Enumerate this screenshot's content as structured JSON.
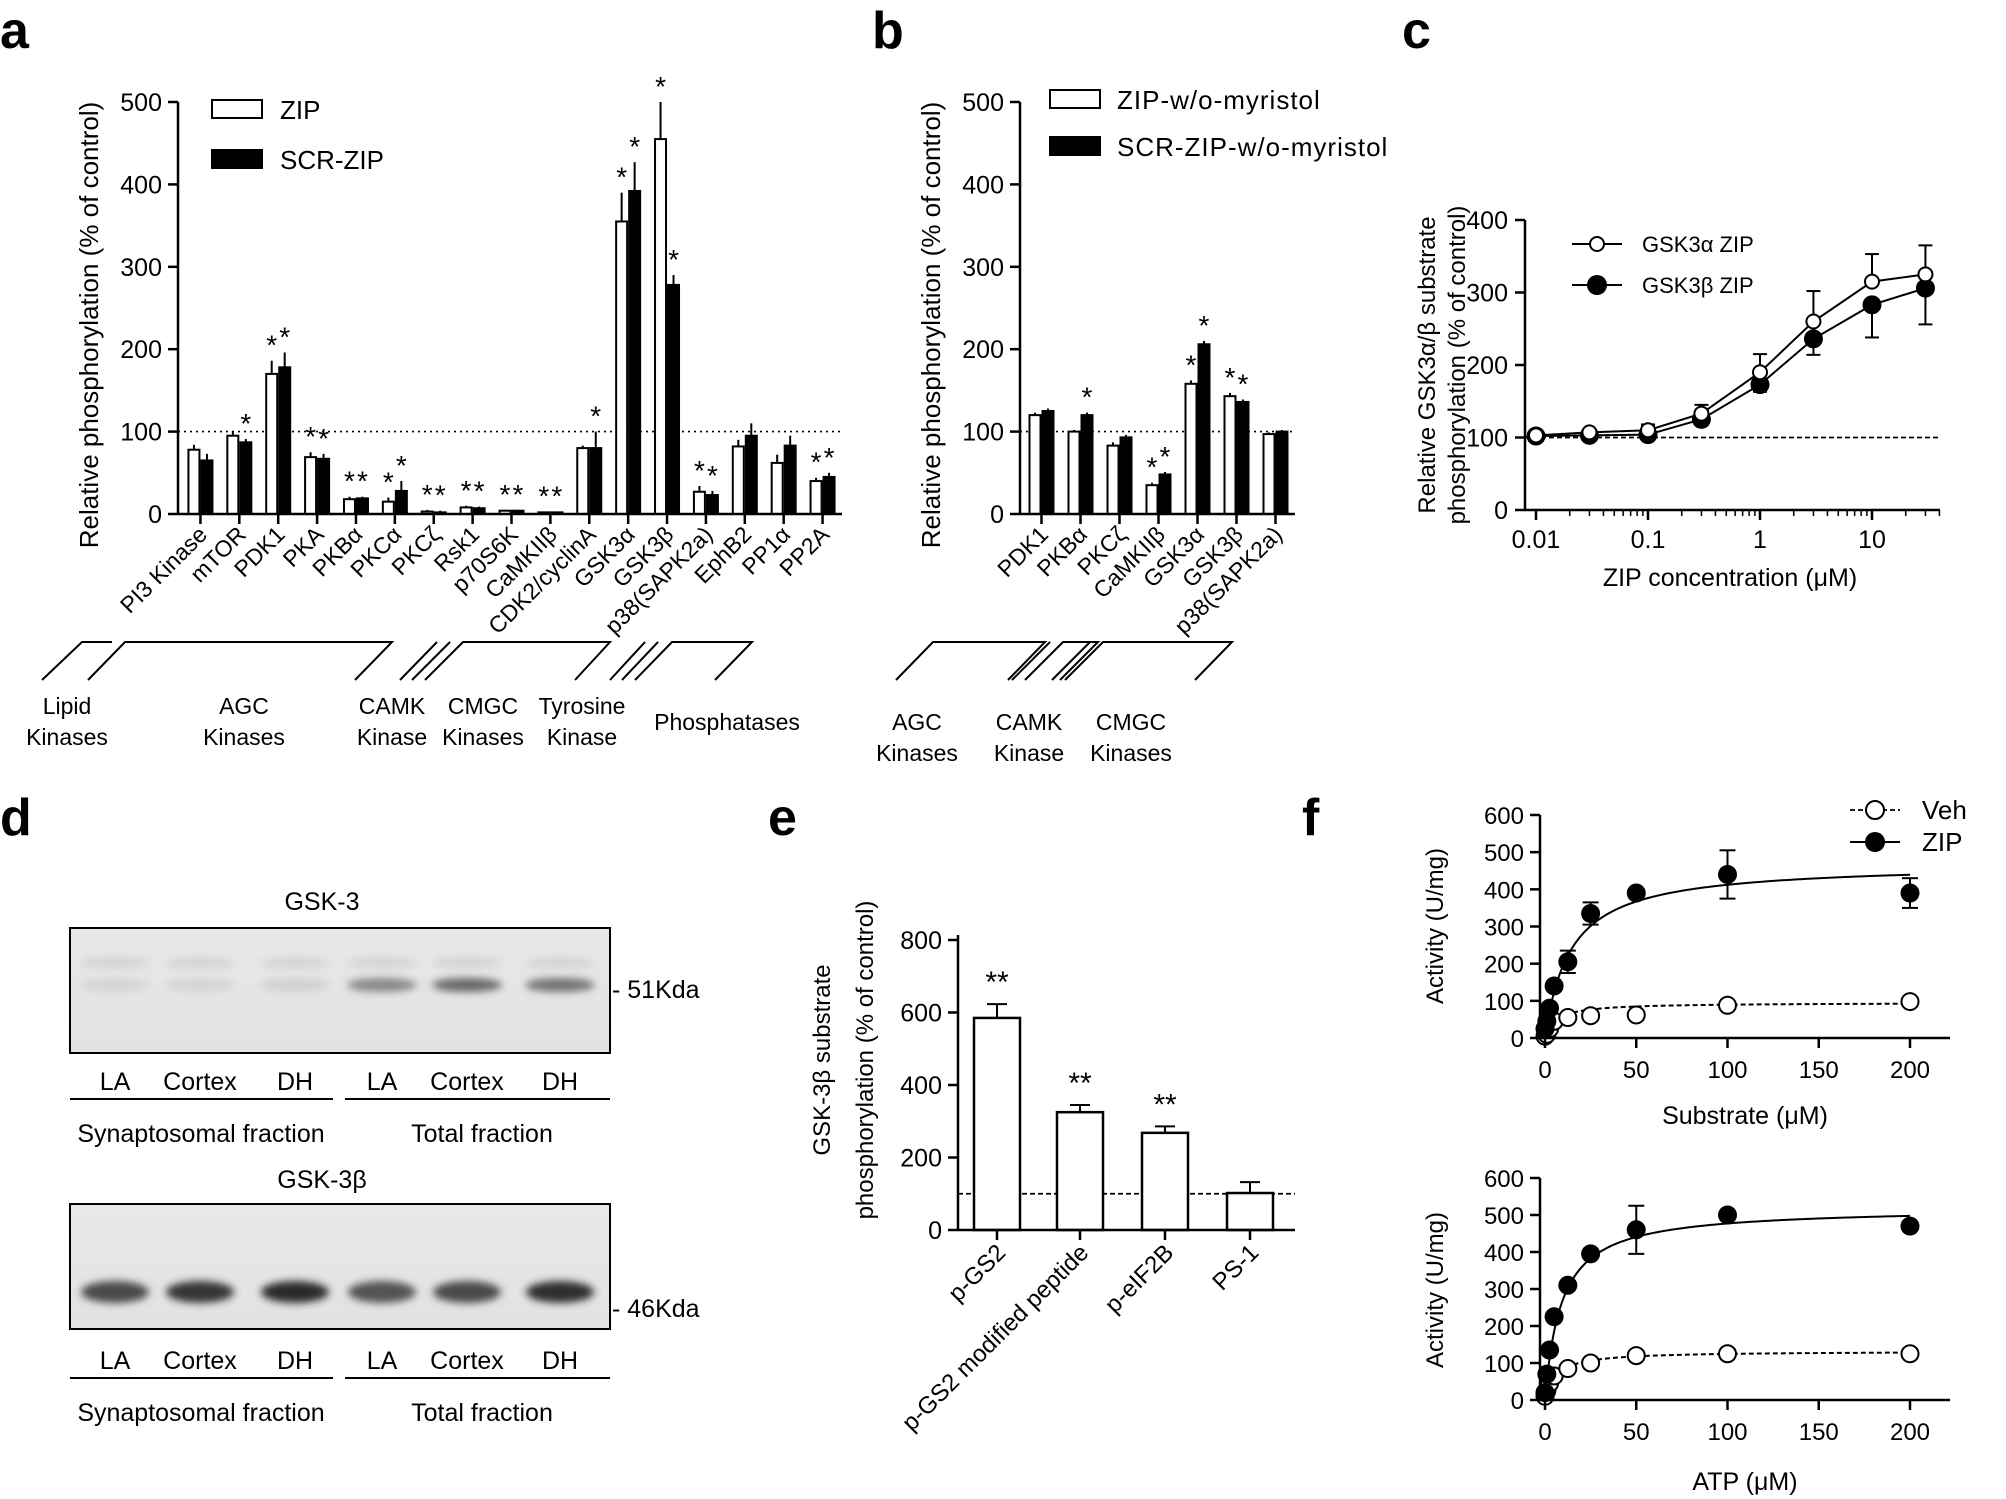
{
  "panel_letters": [
    "a",
    "b",
    "c",
    "d",
    "e",
    "f"
  ],
  "chart_data": [
    {
      "panel": "a",
      "type": "bar",
      "ylabel": "Relative phosphorylation (% of control)",
      "ylim": [
        0,
        500
      ],
      "yticks": [
        "0",
        "100",
        "200",
        "300",
        "400",
        "500"
      ],
      "reference_line": 100,
      "categories": [
        "PI3 Kinase",
        "mTOR",
        "PDK1",
        "PKA",
        "PKBα",
        "PKCα",
        "PKCζ",
        "Rsk1",
        "p70S6K",
        "CaMKIIβ",
        "CDK2/cyclinA",
        "GSK3α",
        "GSK3β",
        "p38(SAPK2a)",
        "EphB2",
        "PP1α",
        "PP2A"
      ],
      "series": [
        {
          "name": "ZIP",
          "fill": "#ffffff",
          "values": [
            78,
            95,
            170,
            69,
            18,
            15,
            3,
            8,
            4,
            2,
            80,
            355,
            455,
            27,
            82,
            62,
            40
          ],
          "errors": [
            6,
            6,
            16,
            6,
            3,
            5,
            2,
            2,
            1,
            1,
            3,
            35,
            45,
            7,
            8,
            10,
            4
          ]
        },
        {
          "name": "SCR-ZIP",
          "fill": "#000000",
          "values": [
            65,
            87,
            178,
            67,
            19,
            28,
            2,
            7,
            4,
            2,
            80,
            392,
            278,
            23,
            95,
            83,
            45
          ],
          "errors": [
            8,
            4,
            18,
            6,
            2,
            12,
            2,
            2,
            1,
            1,
            20,
            35,
            12,
            5,
            15,
            12,
            5
          ]
        }
      ],
      "stars_zip": [
        "",
        "",
        "*",
        "*",
        "*",
        "*",
        "*",
        "*",
        "*",
        "*",
        "",
        "*",
        "*",
        "*",
        "",
        "",
        "*"
      ],
      "stars_scr": [
        "",
        "*",
        "*",
        "*",
        "*",
        "*",
        "*",
        "*",
        "*",
        "*",
        "*",
        "*",
        "*",
        "*",
        "",
        "",
        "*"
      ],
      "groups": [
        {
          "line1": "Lipid",
          "line2": "Kinases"
        },
        {
          "line1": "AGC",
          "line2": "Kinases"
        },
        {
          "line1": "CAMK",
          "line2": "Kinase"
        },
        {
          "line1": "CMGC",
          "line2": "Kinases"
        },
        {
          "line1": "Tyrosine",
          "line2": "Kinase"
        },
        {
          "line1": "Phosphatases",
          "line2": ""
        }
      ]
    },
    {
      "panel": "b",
      "type": "bar",
      "ylabel": "Relative phosphorylation (% of control)",
      "ylim": [
        0,
        500
      ],
      "yticks": [
        "0",
        "100",
        "200",
        "300",
        "400",
        "500"
      ],
      "reference_line": 100,
      "categories": [
        "PDK1",
        "PKBα",
        "PKCζ",
        "CaMKIIβ",
        "GSK3α",
        "GSK3β",
        "p38(SAPK2a)"
      ],
      "series": [
        {
          "name": "ZIP-w/o-myristol",
          "fill": "#ffffff",
          "values": [
            120,
            100,
            83,
            35,
            158,
            143,
            97
          ],
          "errors": [
            3,
            2,
            4,
            3,
            4,
            4,
            2
          ]
        },
        {
          "name": "SCR-ZIP-w/o-myristol",
          "fill": "#000000",
          "values": [
            125,
            120,
            93,
            48,
            206,
            136,
            100
          ],
          "errors": [
            3,
            3,
            3,
            3,
            4,
            3,
            2
          ]
        }
      ],
      "stars_zip": [
        "",
        "",
        "",
        "*",
        "*",
        "*",
        ""
      ],
      "stars_scr": [
        "",
        "*",
        "",
        "*",
        "*",
        "*",
        ""
      ],
      "groups": [
        {
          "line1": "AGC",
          "line2": "Kinases"
        },
        {
          "line1": "CAMK",
          "line2": "Kinase"
        },
        {
          "line1": "CMGC",
          "line2": "Kinases"
        }
      ]
    },
    {
      "panel": "c",
      "type": "line",
      "xscale": "log",
      "xlabel": "ZIP concentration (μM)",
      "ylabel_line1": "Relative GSK3α/β substrate",
      "ylabel_line2": "phosphorylation (% of control)",
      "ylim": [
        0,
        400
      ],
      "yticks": [
        "0",
        "100",
        "200",
        "300",
        "400"
      ],
      "xticks": [
        "0.01",
        "0.1",
        "1",
        "10"
      ],
      "reference_line": 100,
      "x": [
        0.01,
        0.03,
        0.1,
        0.3,
        1,
        3,
        10,
        30
      ],
      "series": [
        {
          "name": "GSK3α ZIP",
          "marker": "open",
          "values": [
            103,
            107,
            110,
            133,
            190,
            260,
            315,
            325
          ],
          "errors": [
            5,
            6,
            8,
            12,
            25,
            42,
            38,
            40
          ]
        },
        {
          "name": "GSK3β ZIP",
          "marker": "filled",
          "values": [
            102,
            103,
            104,
            125,
            173,
            236,
            283,
            306
          ],
          "errors": [
            4,
            5,
            6,
            8,
            10,
            22,
            45,
            50
          ]
        }
      ]
    },
    {
      "panel": "e",
      "type": "bar",
      "ylabel_line1": "GSK-3β substrate",
      "ylabel_line2": "phosphorylation (% of control)",
      "ylim": [
        0,
        800
      ],
      "yticks": [
        "0",
        "200",
        "400",
        "600",
        "800"
      ],
      "reference_line": 100,
      "categories": [
        "p-GS2",
        "p-GS2 modified peptide",
        "p-eIF2B",
        "PS-1"
      ],
      "values": [
        585,
        325,
        268,
        102
      ],
      "errors": [
        38,
        20,
        18,
        30
      ],
      "stars": [
        "**",
        "**",
        "**",
        ""
      ]
    },
    {
      "panel": "f",
      "type": "scatter",
      "legend": [
        "Veh",
        "ZIP"
      ],
      "plots": [
        {
          "xlabel": "Substrate (μM)",
          "ylabel": "Activity (U/mg)",
          "xlim": [
            0,
            220
          ],
          "ylim": [
            0,
            600
          ],
          "xticks": [
            "0",
            "50",
            "100",
            "150",
            "200"
          ],
          "yticks": [
            "0",
            "100",
            "200",
            "300",
            "400",
            "500",
            "600"
          ],
          "x": [
            0,
            1,
            2.5,
            5,
            12.5,
            25,
            50,
            100,
            200
          ],
          "veh": {
            "values": [
              5,
              10,
              25,
              45,
              55,
              60,
              62,
              88,
              98
            ],
            "vmax": 95,
            "km": 6
          },
          "zip": {
            "values": [
              25,
              45,
              80,
              140,
              205,
              335,
              390,
              440,
              390
            ],
            "errors": [
              0,
              0,
              0,
              0,
              30,
              30,
              0,
              65,
              40
            ],
            "vmax": 470,
            "km": 14
          }
        },
        {
          "xlabel": "ATP  (μM)",
          "ylabel": "Activity (U/mg)",
          "xlim": [
            0,
            220
          ],
          "ylim": [
            0,
            600
          ],
          "xticks": [
            "0",
            "50",
            "100",
            "150",
            "200"
          ],
          "yticks": [
            "0",
            "100",
            "200",
            "300",
            "400",
            "500",
            "600"
          ],
          "x": [
            0,
            1,
            2.5,
            5,
            12.5,
            25,
            50,
            100,
            200
          ],
          "veh": {
            "values": [
              10,
              25,
              45,
              65,
              85,
              100,
              120,
              125,
              125
            ],
            "vmax": 132,
            "km": 6
          },
          "zip": {
            "values": [
              20,
              70,
              135,
              225,
              310,
              395,
              460,
              500,
              470
            ],
            "errors": [
              0,
              0,
              0,
              0,
              0,
              0,
              65,
              0,
              0
            ],
            "vmax": 520,
            "km": 9
          }
        }
      ]
    }
  ],
  "blots": {
    "top_title": "GSK-3",
    "top_marker": "- 51Kda",
    "bottom_title": "GSK-3β",
    "bottom_marker": "- 46Kda",
    "lanes": [
      "LA",
      "Cortex",
      "DH",
      "LA",
      "Cortex",
      "DH"
    ],
    "fraction_left": "Synaptosomal fraction",
    "fraction_right": "Total fraction",
    "top_intensity": [
      0.08,
      0.08,
      0.1,
      0.45,
      0.6,
      0.55
    ],
    "bottom_intensity": [
      0.75,
      0.85,
      0.9,
      0.7,
      0.75,
      0.88
    ]
  }
}
